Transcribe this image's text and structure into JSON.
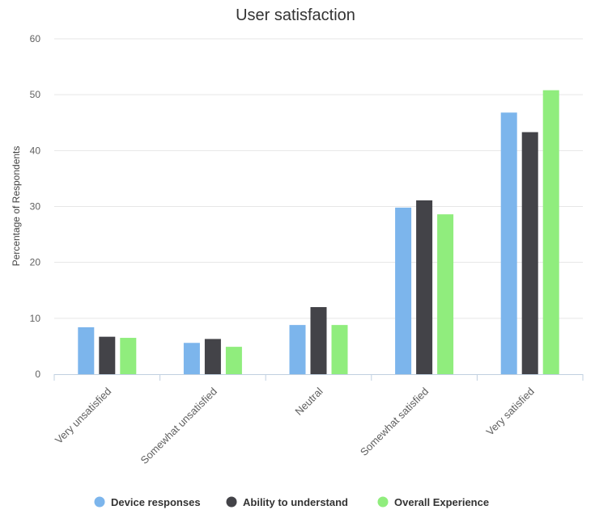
{
  "chart_data": {
    "type": "bar",
    "title": "User satisfaction",
    "xlabel": "",
    "ylabel": "Percentage of Respondents",
    "ylim": [
      0,
      60
    ],
    "yticks": [
      0,
      10,
      20,
      30,
      40,
      50,
      60
    ],
    "grid": true,
    "legend_position": "bottom",
    "categories": [
      "Very unsatisfied",
      "Somewhat unsatisfied",
      "Neutral",
      "Somewhat satisfied",
      "Very satisfied"
    ],
    "series": [
      {
        "name": "Device responses",
        "color": "#7cb5ec",
        "values": [
          8.4,
          5.6,
          8.8,
          29.8,
          46.8
        ]
      },
      {
        "name": "Ability to understand",
        "color": "#434348",
        "values": [
          6.7,
          6.3,
          12.0,
          31.1,
          43.3
        ]
      },
      {
        "name": "Overall Experience",
        "color": "#90ed7d",
        "values": [
          6.5,
          4.9,
          8.8,
          28.6,
          50.8
        ]
      }
    ]
  }
}
